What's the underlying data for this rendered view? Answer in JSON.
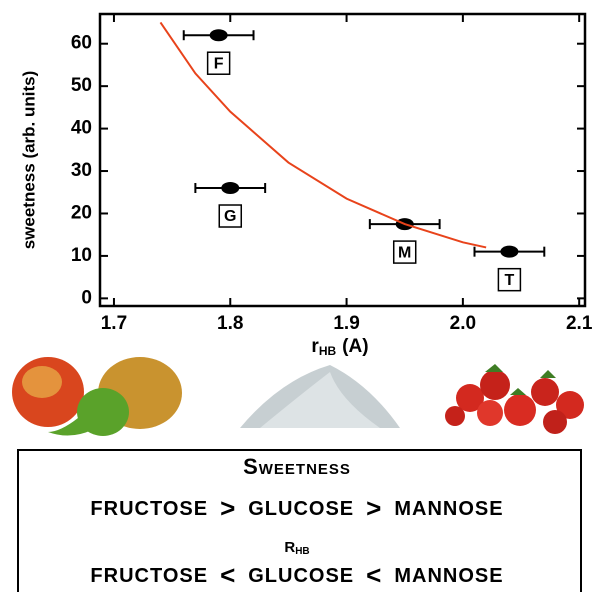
{
  "chart_data": {
    "type": "scatter",
    "ylabel": "sweetness (arb. units)",
    "xlabel": {
      "main": "r",
      "sub": "HB",
      "unit": "(A)"
    },
    "xlim": [
      1.688,
      2.105
    ],
    "ylim": [
      -1.8,
      67
    ],
    "xticks": [
      1.7,
      1.8,
      1.9,
      {
        "value": 2,
        "label": "2.0"
      },
      2.1
    ],
    "yticks": [
      0,
      10,
      20,
      30,
      40,
      50,
      60
    ],
    "series": [
      {
        "type": "scatter",
        "color": "#000000",
        "x": [
          1.79,
          1.8,
          1.95,
          2.04
        ],
        "values": [
          62,
          26,
          17.5,
          11
        ],
        "xerr": [
          0.03,
          0.03,
          0.03,
          0.03
        ],
        "point_labels": [
          "F",
          "G",
          "M",
          "T"
        ]
      },
      {
        "type": "line",
        "color": "#e8431b",
        "x": [
          1.74,
          1.77,
          1.8,
          1.85,
          1.9,
          1.95,
          2.0,
          2.02
        ],
        "values": [
          65,
          53,
          44,
          32,
          23.5,
          17.5,
          13.2,
          12
        ]
      }
    ]
  },
  "panel": {
    "title": "Sweetness",
    "line1": [
      "FRUCTOSE",
      ">",
      "GLUCOSE",
      ">",
      "MANNOSE"
    ],
    "subtitle": {
      "main": "R",
      "sub": "HB"
    },
    "line2": [
      "FRUCTOSE",
      "<",
      "GLUCOSE",
      "<",
      "MANNOSE"
    ]
  }
}
